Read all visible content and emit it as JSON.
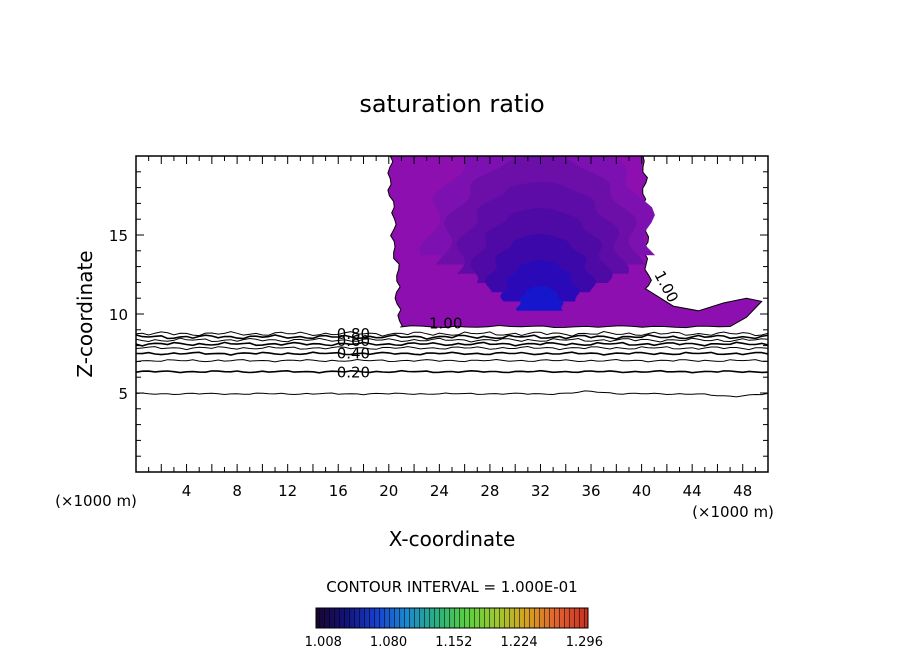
{
  "chart_data": {
    "type": "contour",
    "title": "saturation ratio",
    "xlabel": "X-coordinate",
    "ylabel": "Z-coordinate",
    "x_unit_label": "(×1000 m)",
    "z_unit_label": "(×1000 m)",
    "xlim": [
      0,
      50
    ],
    "ylim": [
      0,
      20
    ],
    "x_ticks": [
      4,
      8,
      12,
      16,
      20,
      24,
      28,
      32,
      36,
      40,
      44,
      48
    ],
    "y_ticks": [
      5,
      10,
      15
    ],
    "contour_interval_label": "CONTOUR INTERVAL = 1.000E-01",
    "contour_line_levels": [
      0.1,
      0.2,
      0.3,
      0.4,
      0.5,
      0.6,
      0.7,
      0.8,
      0.9
    ],
    "contour_line_heights": [
      4.95,
      6.35,
      7.05,
      7.5,
      7.85,
      8.1,
      8.35,
      8.55,
      8.75
    ],
    "contour_labels": [
      {
        "text": "0.80",
        "x": 17.2,
        "y": 8.75
      },
      {
        "text": "0.60",
        "x": 17.2,
        "y": 8.3
      },
      {
        "text": "0.40",
        "x": 17.2,
        "y": 7.5
      },
      {
        "text": "0.20",
        "x": 17.2,
        "y": 6.3
      },
      {
        "text": "1.00",
        "x": 24.5,
        "y": 9.4
      },
      {
        "text": "1.00",
        "x": 41.6,
        "y": 11.9
      }
    ],
    "supersaturated_region": {
      "level": 1.0,
      "x_left_edge": 20,
      "x_right_edge": 40.5,
      "z_bottom": 9.2,
      "z_top": 20,
      "anvil_tip": [
        49.5,
        10.8
      ],
      "max_core": {
        "x": 32,
        "z": 13
      }
    },
    "colorbar": {
      "tick_labels": [
        "1.008",
        "1.080",
        "1.152",
        "1.224",
        "1.296"
      ],
      "range": [
        1.0,
        1.3
      ],
      "colors": [
        "#1a0530",
        "#12127a",
        "#1740d0",
        "#1a8ad0",
        "#2ab080",
        "#5ad040",
        "#a0c830",
        "#d8a020",
        "#e06030",
        "#c83020"
      ]
    },
    "fill_colors": [
      "#8e0fb0",
      "#7c10b0",
      "#6c0ea8",
      "#5e0ca8",
      "#4f0aa6",
      "#3d08aa",
      "#2a0ab8",
      "#1616cc"
    ]
  }
}
